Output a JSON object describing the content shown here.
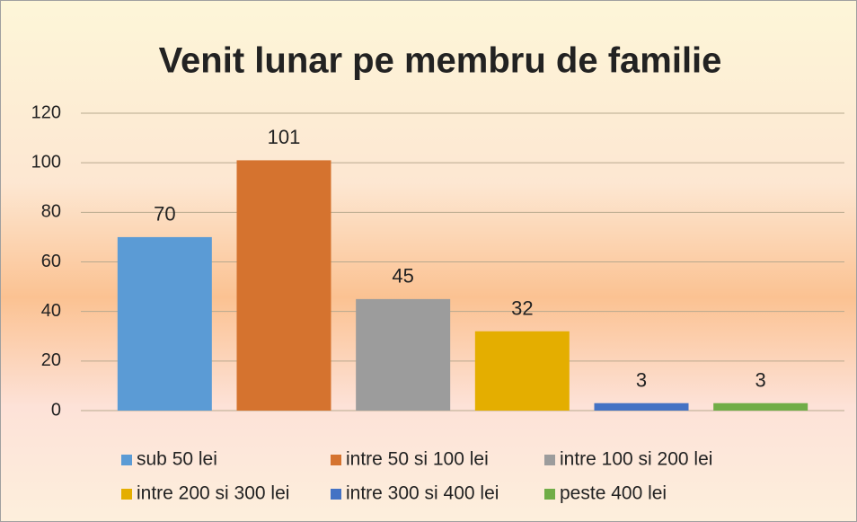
{
  "chart_data": {
    "type": "bar",
    "title": "Venit lunar pe membru de familie",
    "series": [
      {
        "name": "sub 50 lei",
        "color": "#5b9bd5",
        "values": [
          70
        ]
      },
      {
        "name": "intre 50 si 100 lei",
        "color": "#d5732f",
        "values": [
          101
        ]
      },
      {
        "name": "intre 100 si 200 lei",
        "color": "#9c9c9c",
        "values": [
          45
        ]
      },
      {
        "name": "intre 200 si 300 lei",
        "color": "#e4ae00",
        "values": [
          32
        ]
      },
      {
        "name": "intre 300 si 400 lei",
        "color": "#4472c4",
        "values": [
          3
        ]
      },
      {
        "name": "peste 400 lei",
        "color": "#70ad47",
        "values": [
          3
        ]
      }
    ],
    "ylim": [
      0,
      120
    ],
    "yticks": [
      0,
      20,
      40,
      60,
      80,
      100,
      120
    ],
    "grid": true,
    "legend": "bottom"
  }
}
